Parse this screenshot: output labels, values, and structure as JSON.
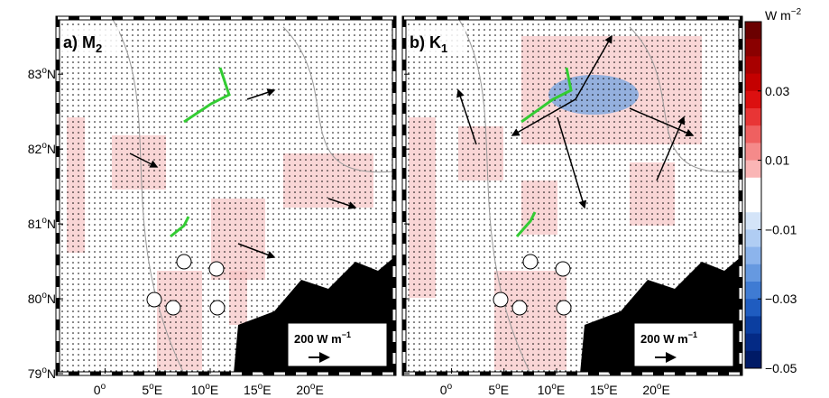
{
  "panels": [
    {
      "label": "a) M",
      "subscript": "2"
    },
    {
      "label": "b) K",
      "subscript": "1"
    }
  ],
  "degree_mark": "o",
  "lat_ticks": [
    {
      "value": 83,
      "label": "83"
    },
    {
      "value": 82,
      "label": "82"
    },
    {
      "value": 81,
      "label": "81"
    },
    {
      "value": 80,
      "label": "80"
    },
    {
      "value": 79,
      "label": "79"
    }
  ],
  "lat_suffix": "N",
  "lon_ticks": [
    {
      "value": 0,
      "label": "0"
    },
    {
      "value": 5,
      "label": "5"
    },
    {
      "value": 10,
      "label": "10"
    },
    {
      "value": 15,
      "label": "15"
    },
    {
      "value": 20,
      "label": "20"
    }
  ],
  "lon_suffix": "E",
  "xlim": [
    -4.5,
    27.5
  ],
  "ylim": [
    79,
    83.75
  ],
  "scale_arrow": {
    "value": 200,
    "label": "200 W m",
    "superscript": "−1"
  },
  "colorbar": {
    "unit": "W m",
    "unit_superscript": "−2",
    "clim": [
      -0.05,
      0.05
    ],
    "ticks": [
      0.03,
      0.01,
      {
        "value": -0.01,
        "label": "−0.01"
      },
      {
        "value": -0.03,
        "label": "−0.03"
      },
      {
        "value": -0.05,
        "label": "−0.05"
      }
    ],
    "colors": [
      "#6b0000",
      "#8a0000",
      "#a80000",
      "#c40000",
      "#dc1010",
      "#e83535",
      "#ef6060",
      "#f58a8a",
      "#fab5b5",
      "#ffffff",
      "#ffffff",
      "#d4e4f8",
      "#b0cdf3",
      "#8cb4ec",
      "#6699e0",
      "#3f7bd3",
      "#1f5cc0",
      "#0b3ea0",
      "#042a85",
      "#001a66"
    ]
  }
}
